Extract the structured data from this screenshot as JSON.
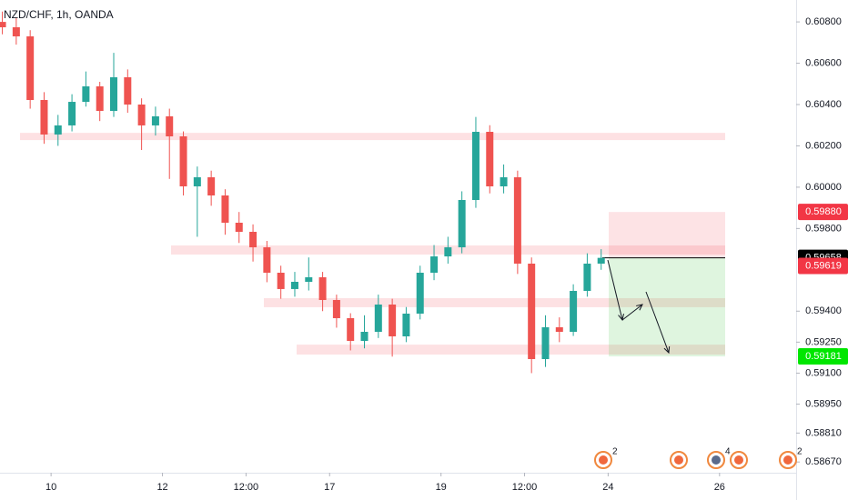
{
  "chart_data": {
    "type": "candlestick",
    "title": "NZD/CHF, 1h, OANDA",
    "up_color": "#26a69a",
    "down_color": "#ef5350",
    "xlim": [
      2,
      345
    ],
    "ylim": [
      0.58618,
      0.60906
    ],
    "x": [
      3,
      9,
      15,
      21,
      27,
      33,
      39,
      45,
      51,
      57,
      63,
      69,
      75,
      81,
      87,
      93,
      99,
      105,
      111,
      117,
      123,
      129,
      135,
      141,
      147,
      153,
      159,
      165,
      171,
      177,
      183,
      189,
      195,
      201,
      207,
      213,
      219,
      225,
      231,
      237,
      243,
      249,
      255,
      261
    ],
    "open": [
      0.608,
      0.60774,
      0.6073,
      0.60422,
      0.60255,
      0.60299,
      0.60413,
      0.60488,
      0.60369,
      0.60532,
      0.604,
      0.60299,
      0.60343,
      0.60246,
      0.60004,
      0.60048,
      0.5996,
      0.59828,
      0.59784,
      0.59709,
      0.59586,
      0.59507,
      0.59542,
      0.59564,
      0.59454,
      0.59366,
      0.59256,
      0.593,
      0.59432,
      0.59278,
      0.59388,
      0.59586,
      0.59665,
      0.59709,
      0.59938,
      0.60268,
      0.60004,
      0.60048,
      0.5963,
      0.59168,
      0.59322,
      0.593,
      0.59498,
      0.5963
    ],
    "high": [
      0.6085,
      0.6082,
      0.6076,
      0.6046,
      0.6035,
      0.6045,
      0.6056,
      0.6051,
      0.6065,
      0.6057,
      0.6043,
      0.6039,
      0.6038,
      0.6027,
      0.601,
      0.6008,
      0.5999,
      0.5988,
      0.5982,
      0.5974,
      0.5962,
      0.5959,
      0.5966,
      0.5959,
      0.5948,
      0.5939,
      0.5938,
      0.5948,
      0.5946,
      0.5942,
      0.5962,
      0.5972,
      0.5976,
      0.5998,
      0.6034,
      0.603,
      0.6011,
      0.6008,
      0.5966,
      0.5938,
      0.5937,
      0.5953,
      0.5968,
      0.597
    ],
    "low": [
      0.6074,
      0.6069,
      0.6038,
      0.6021,
      0.602,
      0.6027,
      0.6039,
      0.6032,
      0.6034,
      0.6036,
      0.6018,
      0.6025,
      0.6004,
      0.5996,
      0.5976,
      0.5991,
      0.5977,
      0.5973,
      0.5964,
      0.5954,
      0.5946,
      0.5947,
      0.595,
      0.594,
      0.5932,
      0.5921,
      0.5922,
      0.5927,
      0.5918,
      0.5925,
      0.5936,
      0.5955,
      0.5963,
      0.5968,
      0.599,
      0.5997,
      0.5997,
      0.5958,
      0.591,
      0.5913,
      0.5925,
      0.5928,
      0.5947,
      0.596
    ],
    "close": [
      0.60774,
      0.6073,
      0.60422,
      0.60255,
      0.60299,
      0.60413,
      0.60488,
      0.60369,
      0.60532,
      0.604,
      0.60299,
      0.60343,
      0.60246,
      0.60004,
      0.60048,
      0.5996,
      0.59828,
      0.59784,
      0.59709,
      0.59586,
      0.59507,
      0.59542,
      0.59564,
      0.59454,
      0.59366,
      0.59256,
      0.593,
      0.59432,
      0.59278,
      0.59388,
      0.59586,
      0.59665,
      0.59709,
      0.59938,
      0.60268,
      0.60004,
      0.60048,
      0.5963,
      0.59168,
      0.59322,
      0.593,
      0.59498,
      0.5963,
      0.59658
    ],
    "xticks": [
      {
        "value": 24,
        "label": "10"
      },
      {
        "value": 72,
        "label": "12"
      },
      {
        "value": 108,
        "label": "12:00"
      },
      {
        "value": 144,
        "label": "17"
      },
      {
        "value": 192,
        "label": "19"
      },
      {
        "value": 228,
        "label": "12:00"
      },
      {
        "value": 264,
        "label": "24"
      },
      {
        "value": 312,
        "label": "26"
      }
    ],
    "yticks": [
      {
        "value": 0.608,
        "label": "0.60800"
      },
      {
        "value": 0.606,
        "label": "0.60600"
      },
      {
        "value": 0.604,
        "label": "0.60400"
      },
      {
        "value": 0.602,
        "label": "0.60200"
      },
      {
        "value": 0.6,
        "label": "0.60000"
      },
      {
        "value": 0.598,
        "label": "0.59800"
      },
      {
        "value": 0.594,
        "label": "0.59400"
      },
      {
        "value": 0.5925,
        "label": "0.59250"
      },
      {
        "value": 0.591,
        "label": "0.59100"
      },
      {
        "value": 0.5895,
        "label": "0.58950"
      },
      {
        "value": 0.5881,
        "label": "0.58810"
      },
      {
        "value": 0.5867,
        "label": "0.58670"
      }
    ],
    "zones": [
      [
        0.60263,
        0.60228
      ],
      [
        0.59718,
        0.59674
      ],
      [
        0.59463,
        0.59419
      ],
      [
        0.59238,
        0.5919
      ]
    ],
    "price_markers": [
      {
        "value": 0.5988,
        "label": "0.59880",
        "color": "#f23645"
      },
      {
        "value": 0.59658,
        "color": "#000000"
      },
      {
        "value": 0.59619,
        "color": "#f23645"
      },
      {
        "value": 0.59181,
        "color": "#00e600"
      }
    ],
    "event_counts": [
      2,
      4,
      2
    ]
  }
}
